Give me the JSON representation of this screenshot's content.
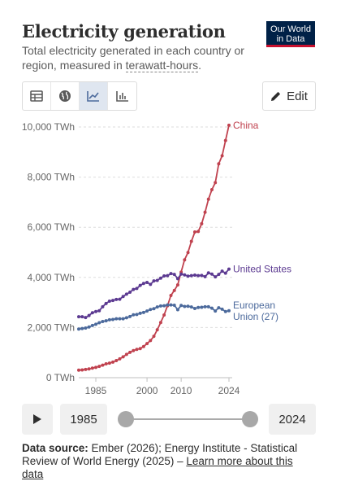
{
  "header": {
    "title": "Electricity generation",
    "subtitle_pre": "Total electricity generated in each country or region, measured in ",
    "subtitle_term": "terawatt-hours",
    "subtitle_post": ".",
    "logo_line1": "Our World",
    "logo_line2": "in Data"
  },
  "toolbar": {
    "tabs": [
      {
        "icon": "table-icon",
        "active": false
      },
      {
        "icon": "globe-icon",
        "active": false
      },
      {
        "icon": "line-chart-icon",
        "active": true
      },
      {
        "icon": "bar-chart-icon",
        "active": false
      }
    ],
    "edit_label": "Edit"
  },
  "colors": {
    "China": "#c0424f",
    "United States": "#5c3a91",
    "European Union (27)": "#4c6a9c"
  },
  "chart_data": {
    "type": "line",
    "title": "Electricity generation",
    "x_ticks": [
      1985,
      2000,
      2010,
      2024
    ],
    "y_ticks": [
      0,
      2000,
      4000,
      6000,
      8000,
      10000
    ],
    "y_tick_labels": [
      "0 TWh",
      "2,000 TWh",
      "4,000 TWh",
      "6,000 TWh",
      "8,000 TWh",
      "10,000 TWh"
    ],
    "xlim": [
      1980,
      2024
    ],
    "ylim": [
      0,
      10000
    ],
    "grid": "horizontal dashed",
    "x": [
      1980,
      1981,
      1982,
      1983,
      1984,
      1985,
      1986,
      1987,
      1988,
      1989,
      1990,
      1991,
      1992,
      1993,
      1994,
      1995,
      1996,
      1997,
      1998,
      1999,
      2000,
      2001,
      2002,
      2003,
      2004,
      2005,
      2006,
      2007,
      2008,
      2009,
      2010,
      2011,
      2012,
      2013,
      2014,
      2015,
      2016,
      2017,
      2018,
      2019,
      2020,
      2021,
      2022,
      2023,
      2024
    ],
    "series": [
      {
        "name": "China",
        "label_lines": [
          "China"
        ],
        "values": [
          300,
          310,
          330,
          350,
          380,
          410,
          450,
          500,
          550,
          580,
          620,
          680,
          750,
          830,
          930,
          1010,
          1080,
          1130,
          1160,
          1240,
          1360,
          1480,
          1650,
          1910,
          2200,
          2500,
          2870,
          3280,
          3480,
          3700,
          4210,
          4700,
          4990,
          5440,
          5810,
          5830,
          6140,
          6600,
          7120,
          7500,
          7780,
          8530,
          8850,
          9460,
          10070
        ]
      },
      {
        "name": "United States",
        "label_lines": [
          "United States"
        ],
        "values": [
          2430,
          2430,
          2400,
          2480,
          2590,
          2640,
          2670,
          2830,
          2960,
          3050,
          3080,
          3120,
          3130,
          3240,
          3330,
          3410,
          3520,
          3560,
          3680,
          3760,
          3800,
          3720,
          3860,
          3880,
          3970,
          4060,
          4070,
          4150,
          4120,
          3950,
          4130,
          4100,
          4050,
          4070,
          4090,
          4070,
          4080,
          4030,
          4180,
          4130,
          4020,
          4120,
          4250,
          4170,
          4330
        ]
      },
      {
        "name": "European Union (27)",
        "label_lines": [
          "European",
          "Union (27)"
        ],
        "values": [
          1940,
          1960,
          1980,
          2020,
          2080,
          2130,
          2190,
          2240,
          2270,
          2310,
          2320,
          2350,
          2350,
          2350,
          2390,
          2440,
          2510,
          2520,
          2570,
          2600,
          2660,
          2720,
          2750,
          2820,
          2860,
          2870,
          2900,
          2900,
          2890,
          2710,
          2880,
          2840,
          2850,
          2820,
          2760,
          2800,
          2810,
          2830,
          2830,
          2770,
          2660,
          2790,
          2730,
          2640,
          2670
        ]
      }
    ]
  },
  "timeline": {
    "start_year": "1985",
    "end_year": "2024"
  },
  "footer": {
    "source_label": "Data source:",
    "source_text": " Ember (2026); Energy Institute - Statistical Review of World Energy (2025) – ",
    "link_text": "Learn more about this data"
  }
}
